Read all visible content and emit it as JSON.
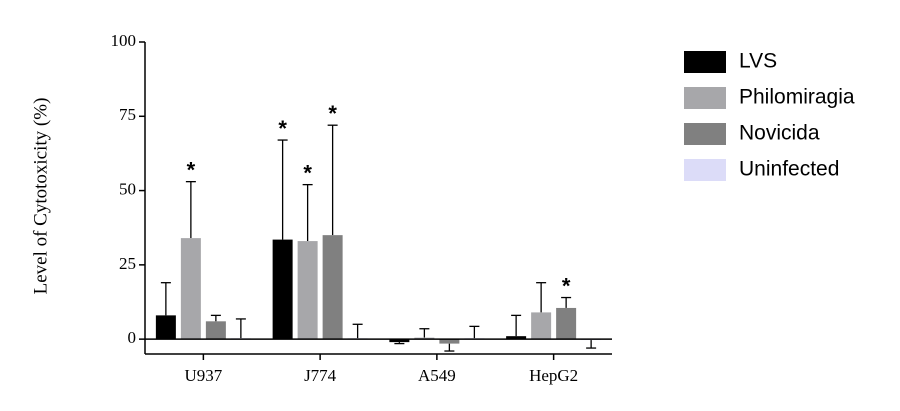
{
  "chart_data": {
    "type": "bar",
    "ylabel": "Level of Cytotoxicity (%)",
    "categories": [
      "U937",
      "J774",
      "A549",
      "HepG2"
    ],
    "series": [
      {
        "name": "LVS",
        "color": "#000000",
        "values": [
          8,
          33.5,
          -1,
          1
        ],
        "errors": [
          11,
          33.5,
          0.5,
          7
        ]
      },
      {
        "name": "Philomiragia",
        "color": "#a7a7aa",
        "values": [
          34,
          33,
          0.5,
          9
        ],
        "errors": [
          19,
          19,
          3,
          10
        ]
      },
      {
        "name": "Novicida",
        "color": "#808080",
        "values": [
          6,
          35,
          -1.5,
          10.5
        ],
        "errors": [
          2,
          37,
          2.5,
          3.5
        ]
      },
      {
        "name": "Uninfected",
        "color": "#dcdcf8",
        "values": [
          0.3,
          0.3,
          0.3,
          -0.3
        ],
        "errors": [
          6.5,
          4.7,
          4,
          2.7
        ]
      }
    ],
    "annotations": [
      {
        "text": "*",
        "series": 1,
        "category": 0
      },
      {
        "text": "*",
        "series": 0,
        "category": 1
      },
      {
        "text": "*",
        "series": 1,
        "category": 1
      },
      {
        "text": "*",
        "series": 2,
        "category": 1
      },
      {
        "text": "*",
        "series": 2,
        "category": 3
      }
    ],
    "ylim": [
      -5,
      100
    ],
    "yticks": [
      0,
      25,
      50,
      75,
      100
    ],
    "legend": "right"
  }
}
